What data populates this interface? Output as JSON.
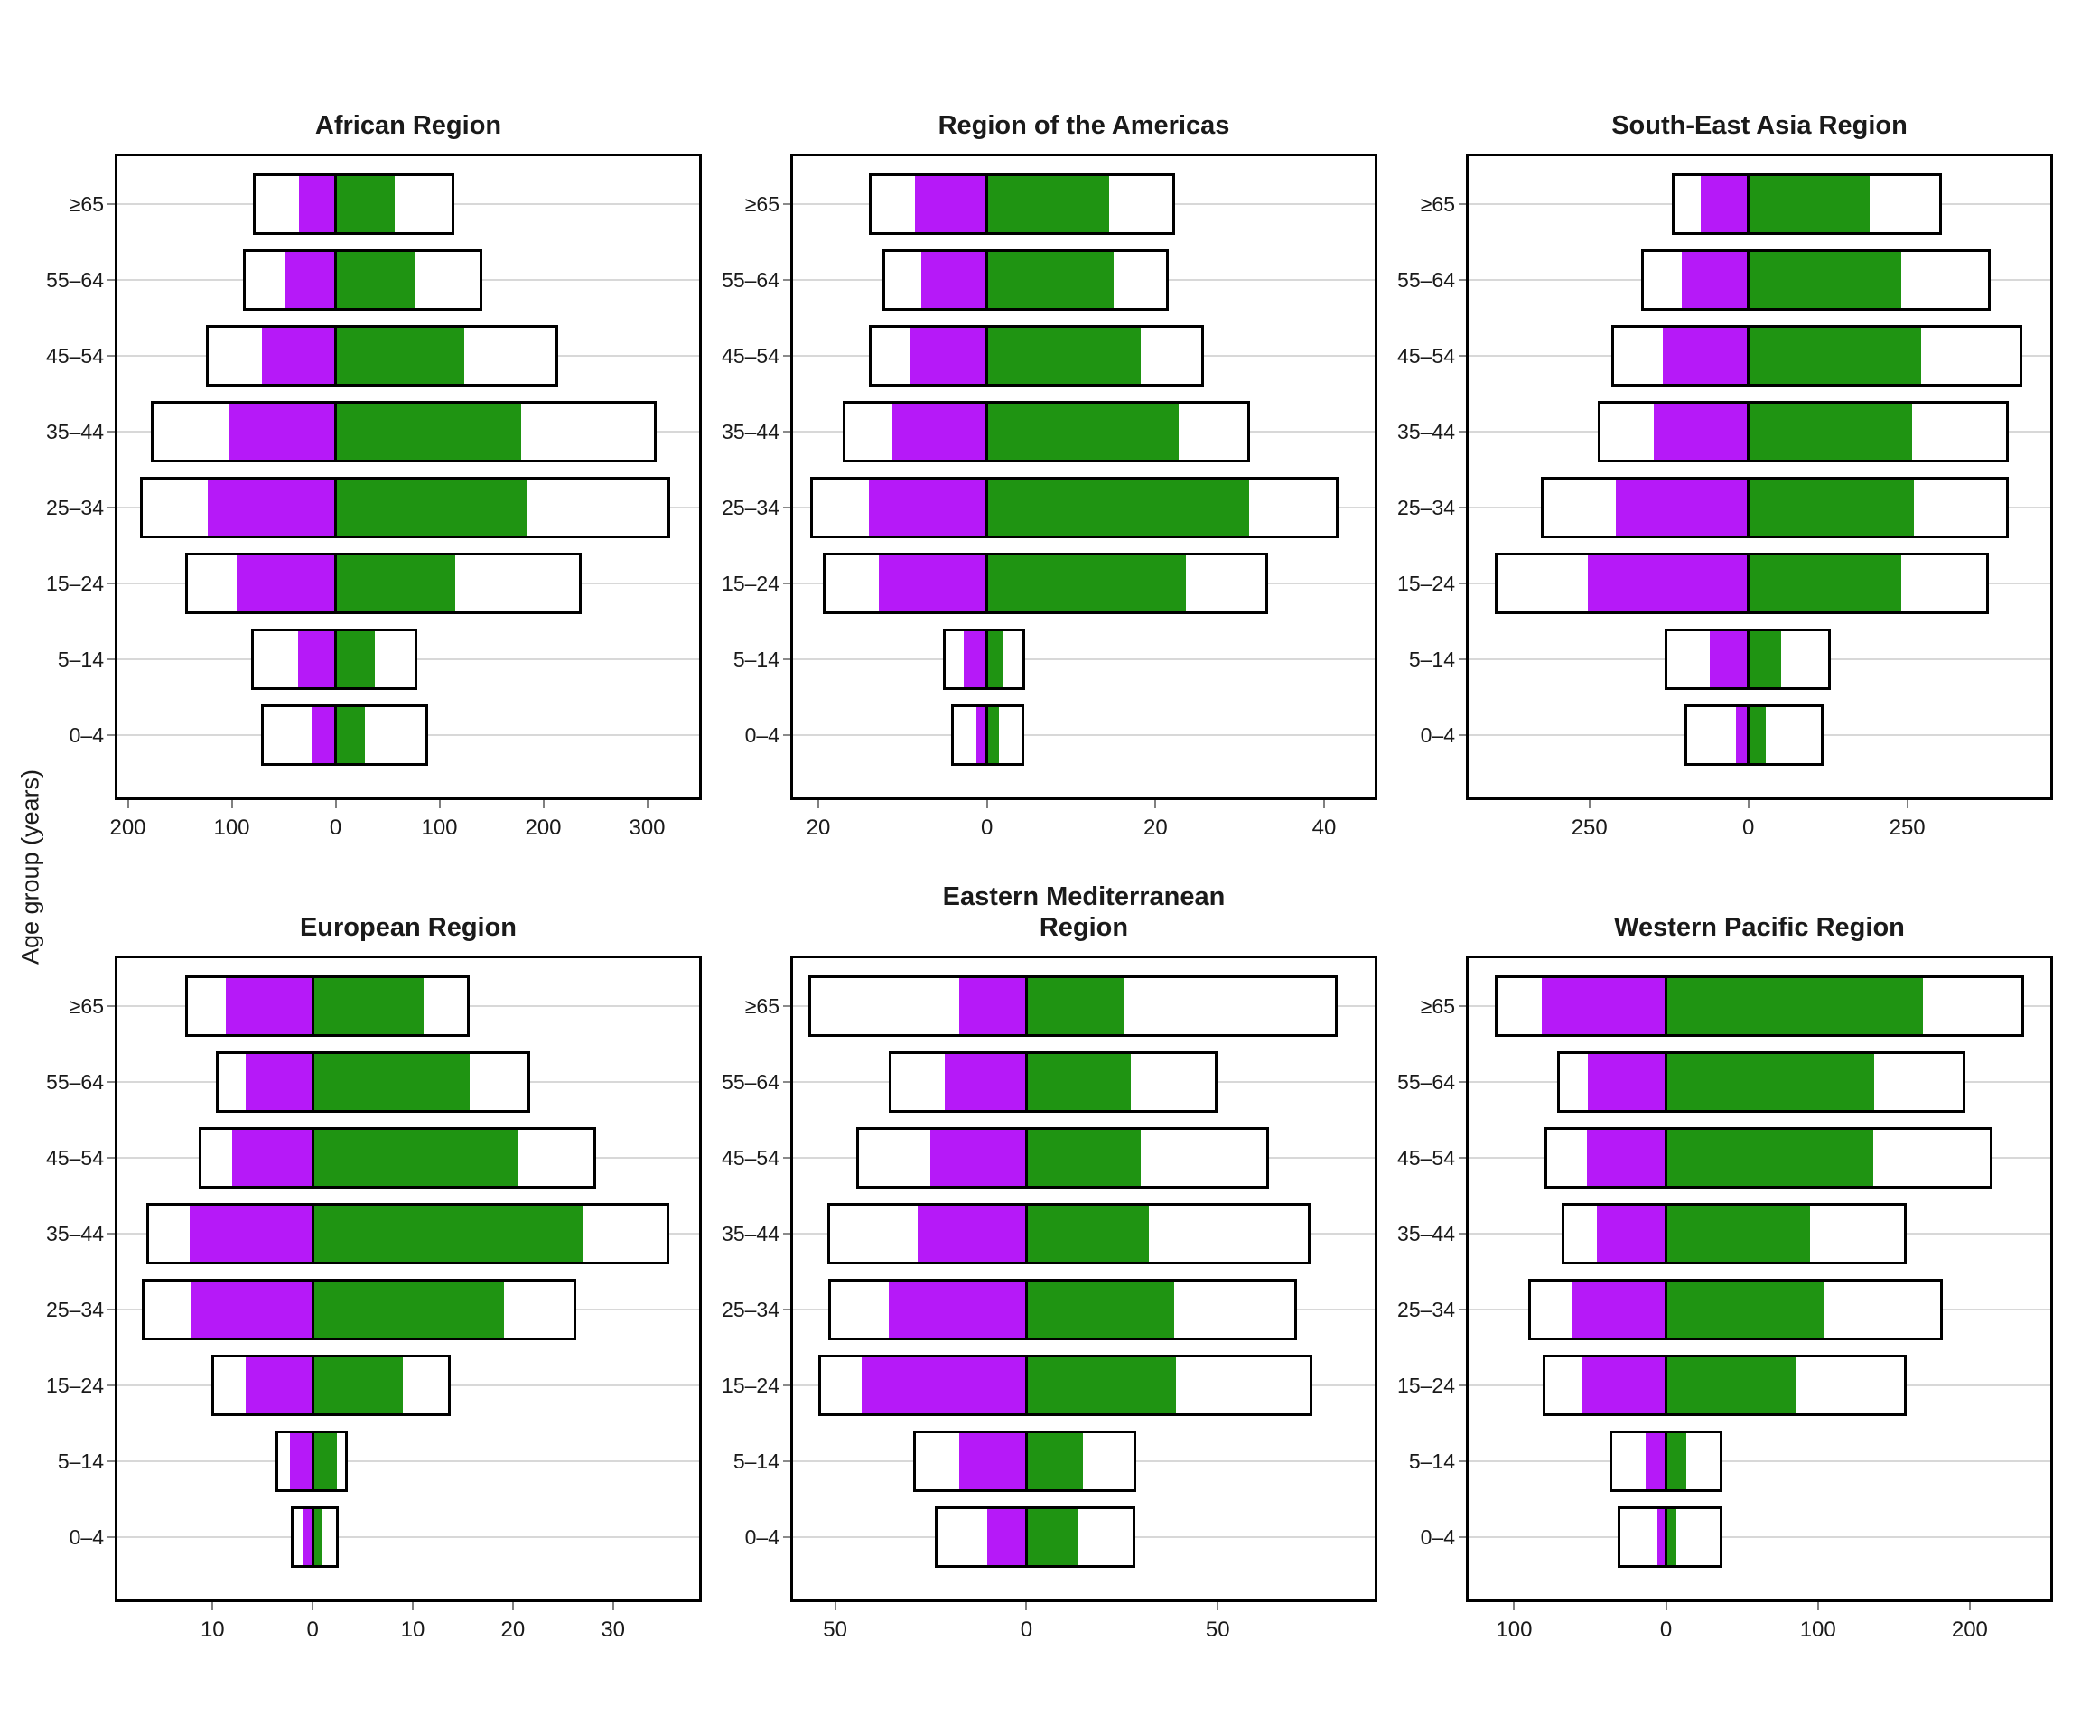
{
  "chart_data": {
    "type": "bar",
    "subtype": "back-to-back horizontal age-pyramid bars, small multiples grid (2 rows x 3 columns)",
    "ylabel": "Age group (years)",
    "categories": [
      "≥65",
      "55–64",
      "45–54",
      "35–44",
      "25–34",
      "15–24",
      "5–14",
      "0–4"
    ],
    "categories_order": "top to bottom",
    "series_note": "Each age row has a white black-outlined range bar extending both sides of 0; a purple bar extends left of 0 and a green bar extends right of 0 on top of it. No legend is shown. X tick labels show absolute values.",
    "legend": null,
    "grid": "horizontal light gray gridline at each age-row center",
    "colors": {
      "purple": "#B619F8",
      "green": "#1F9412",
      "outer_fill": "#FFFFFF",
      "outline": "#000000",
      "gridline": "#D8D8D8",
      "tick": "#808080",
      "text": "#1A1A1A"
    },
    "panels": [
      {
        "title": "African Region",
        "xlim": [
          -210,
          350
        ],
        "ticks": [
          -200,
          -100,
          0,
          100,
          200,
          300
        ],
        "bars": {
          "outer_left": [
            80,
            89,
            125,
            178,
            188,
            145,
            81,
            72
          ],
          "purple_left": [
            35,
            48,
            71,
            103,
            123,
            95,
            36,
            23
          ],
          "green_right": [
            57,
            77,
            124,
            179,
            184,
            115,
            38,
            28
          ],
          "outer_right": [
            114,
            141,
            214,
            309,
            322,
            237,
            79,
            89
          ]
        }
      },
      {
        "title": "Region of the Americas",
        "xlim": [
          -23,
          46
        ],
        "ticks": [
          -20,
          0,
          20,
          40
        ],
        "bars": {
          "outer_left": [
            14,
            12.4,
            14,
            17.1,
            21,
            19.5,
            5.2,
            4.3
          ],
          "purple_left": [
            8.5,
            7.8,
            9.1,
            11.2,
            14,
            12.8,
            2.8,
            1.2
          ],
          "green_right": [
            14.5,
            15,
            18.3,
            22.7,
            31.1,
            23.6,
            2.0,
            1.4
          ],
          "outer_right": [
            22.3,
            21.6,
            25.8,
            31.2,
            41.7,
            33.4,
            4.5,
            4.4
          ]
        }
      },
      {
        "title": "South-East Asia Region",
        "xlim": [
          -440,
          475
        ],
        "ticks": [
          -250,
          0,
          250
        ],
        "bars": {
          "outer_left": [
            120,
            169,
            215,
            237,
            327,
            399,
            132,
            101
          ],
          "purple_left": [
            75,
            105,
            134,
            149,
            209,
            252,
            60,
            20
          ],
          "green_right": [
            191,
            240,
            272,
            258,
            261,
            240,
            51,
            27
          ],
          "outer_right": [
            305,
            381,
            431,
            410,
            410,
            378,
            130,
            119
          ]
        }
      },
      {
        "title": "European Region",
        "xlim": [
          -19.5,
          38.6
        ],
        "ticks": [
          -10,
          0,
          10,
          20,
          30
        ],
        "bars": {
          "outer_left": [
            12.7,
            9.7,
            11.4,
            16.6,
            17.1,
            10.1,
            3.7,
            2.2
          ],
          "purple_left": [
            8.7,
            6.7,
            8.0,
            12.3,
            12.1,
            6.7,
            2.3,
            1.0
          ],
          "green_right": [
            11.1,
            15.7,
            20.6,
            27.0,
            19.1,
            9.0,
            2.4,
            1.0
          ],
          "outer_right": [
            15.7,
            21.7,
            28.3,
            35.6,
            26.3,
            13.8,
            3.5,
            2.6
          ]
        }
      },
      {
        "title": "Eastern Mediterranean\nRegion",
        "xlim": [
          -61,
          91
        ],
        "ticks": [
          -50,
          0,
          50
        ],
        "bars": {
          "outer_left": [
            57,
            35.9,
            44.5,
            52,
            51.7,
            54.4,
            29.6,
            24
          ],
          "purple_left": [
            17.5,
            21.4,
            25.1,
            28.4,
            35.9,
            43,
            17.5,
            10.2
          ],
          "green_right": [
            25.6,
            27.2,
            29.8,
            32,
            38.7,
            39,
            14.7,
            13.3
          ],
          "outer_right": [
            81.3,
            49.9,
            63.4,
            74.2,
            70.7,
            74.6,
            28.7,
            28.4
          ]
        }
      },
      {
        "title": "Western Pacific Region",
        "xlim": [
          -130,
          253
        ],
        "ticks": [
          -100,
          0,
          100,
          200
        ],
        "bars": {
          "outer_left": [
            113,
            72,
            80,
            69,
            90.6,
            81,
            37.5,
            32
          ],
          "purple_left": [
            82,
            51.4,
            52.2,
            45.7,
            62,
            55,
            13.5,
            5.5
          ],
          "green_right": [
            169,
            137,
            136.5,
            95,
            104,
            86,
            13.5,
            7
          ],
          "outer_right": [
            236,
            197,
            215,
            158.5,
            182,
            158.5,
            37,
            37
          ]
        }
      }
    ]
  }
}
